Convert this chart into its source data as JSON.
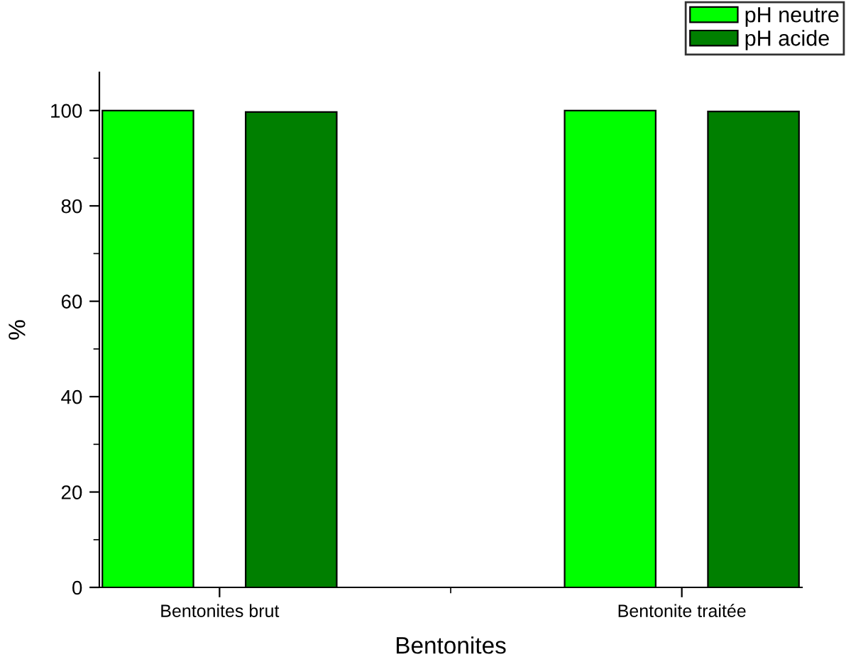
{
  "chart_data": {
    "type": "bar",
    "xlabel": "Bentonites",
    "ylabel": "%",
    "categories": [
      "Bentonites brut",
      "Bentonite traitée"
    ],
    "series": [
      {
        "name": "pH neutre",
        "color": "#00ff00",
        "values": [
          100,
          100
        ]
      },
      {
        "name": "pH acide",
        "color": "#007f00",
        "values": [
          99.7,
          99.8
        ]
      }
    ],
    "ylim": [
      0,
      108
    ],
    "yticks": [
      0,
      20,
      40,
      60,
      80,
      100
    ],
    "grid": false,
    "legend": "top right"
  }
}
